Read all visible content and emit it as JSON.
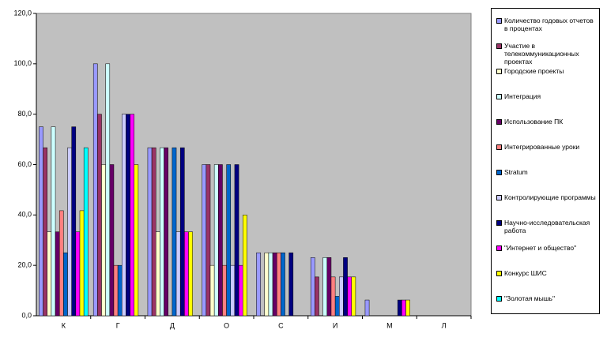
{
  "chart_data": {
    "type": "bar",
    "categories": [
      "К",
      "Г",
      "Д",
      "О",
      "С",
      "И",
      "М",
      "Л"
    ],
    "ylim": [
      0,
      120
    ],
    "yticks": [
      {
        "value": 0,
        "label": "0,0"
      },
      {
        "value": 20,
        "label": "20,0"
      },
      {
        "value": 40,
        "label": "40,0"
      },
      {
        "value": 60,
        "label": "60,0"
      },
      {
        "value": 80,
        "label": "80,0"
      },
      {
        "value": 100,
        "label": "100,0"
      },
      {
        "value": 120,
        "label": "120,0"
      }
    ],
    "grid": false,
    "legend": "right",
    "series": [
      {
        "name": "Количество годовых отчетов в процентах",
        "color": "#9999FF",
        "values": [
          75,
          100,
          66.7,
          60,
          25,
          23.1,
          6.25,
          0
        ]
      },
      {
        "name": "Участие в телекоммуникационных проектах",
        "color": "#993366",
        "values": [
          66.7,
          80,
          66.7,
          60,
          0,
          15.4,
          0,
          0
        ]
      },
      {
        "name": "Городские проекты",
        "color": "#FFFFCC",
        "values": [
          33.3,
          60,
          33.3,
          20,
          25,
          0,
          0,
          0
        ]
      },
      {
        "name": "Интеграция",
        "color": "#CCFFFF",
        "values": [
          75,
          100,
          66.7,
          60,
          25,
          23.1,
          0,
          0
        ]
      },
      {
        "name": "Использование ПК",
        "color": "#660066",
        "values": [
          33.3,
          60,
          66.7,
          60,
          25,
          23.1,
          0,
          0
        ]
      },
      {
        "name": "Интегрированные уроки",
        "color": "#FF8080",
        "values": [
          41.7,
          20,
          0,
          20,
          25,
          15.4,
          0,
          0
        ]
      },
      {
        "name": "Stratum",
        "color": "#0066CC",
        "values": [
          25,
          20,
          66.7,
          60,
          25,
          7.7,
          0,
          0
        ]
      },
      {
        "name": "Контролирующие программы",
        "color": "#CCCCFF",
        "values": [
          66.7,
          80,
          33.3,
          20,
          0,
          15.4,
          0,
          0
        ]
      },
      {
        "name": "Научно-исследовательская работа",
        "color": "#000080",
        "values": [
          75,
          80,
          66.7,
          60,
          25,
          23.1,
          6.25,
          0
        ]
      },
      {
        "name": "\"Интернет и общество\"",
        "color": "#FF00FF",
        "values": [
          33.3,
          80,
          33.3,
          20,
          0,
          15.4,
          6.25,
          0
        ]
      },
      {
        "name": "Конкурс ШИС",
        "color": "#FFFF00",
        "values": [
          41.7,
          60,
          33.3,
          40,
          0,
          15.4,
          6.25,
          0
        ]
      },
      {
        "name": "\"Золотая мышь\"",
        "color": "#00FFFF",
        "values": [
          66.7,
          0,
          0,
          0,
          0,
          0,
          0,
          0
        ]
      }
    ]
  }
}
